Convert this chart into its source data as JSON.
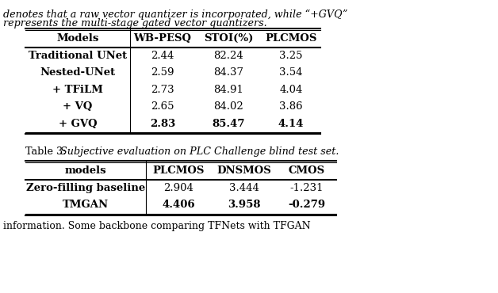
{
  "bg_color": "#ffffff",
  "top_text_line1": "denotes that a raw vector quantizer is incorporated, while “+GVQ”",
  "top_text_line2": "represents the multi-stage gated vector quantizers.",
  "table1_headers": [
    "Models",
    "WB-PESQ",
    "STOI(%)",
    "PLCMOS"
  ],
  "table1_rows": [
    [
      "Traditional UNet",
      "2.44",
      "82.24",
      "3.25"
    ],
    [
      "Nested-UNet",
      "2.59",
      "84.37",
      "3.54"
    ],
    [
      "+ TFiLM",
      "2.73",
      "84.91",
      "4.04"
    ],
    [
      "+ VQ",
      "2.65",
      "84.02",
      "3.86"
    ],
    [
      "+ GVQ",
      "2.83",
      "85.47",
      "4.14"
    ]
  ],
  "table1_bold_data_cols": [
    0,
    1,
    2,
    3
  ],
  "table1_last_row_bold_all": true,
  "caption_prefix": "Table 3: ",
  "caption_italic": "Subjective evaluation on PLC Challenge blind test set.",
  "table2_headers": [
    "models",
    "PLCMOS",
    "DNSMOS",
    "CMOS"
  ],
  "table2_rows": [
    [
      "Zero-filling baseline",
      "2.904",
      "3.444",
      "-1.231"
    ],
    [
      "TMGAN",
      "4.406",
      "3.958",
      "-0.279"
    ]
  ],
  "bottom_text": "information. Some backbone comparing TFNets with TFGAN",
  "fig_width": 6.28,
  "fig_height": 3.7,
  "dpi": 100
}
